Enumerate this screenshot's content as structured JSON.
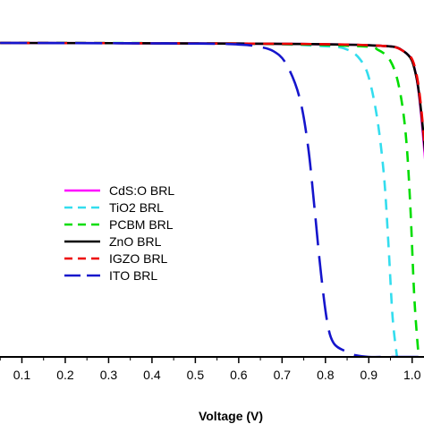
{
  "chart_data": {
    "type": "line",
    "title": "",
    "xlabel": "Voltage (V)",
    "ylabel": "",
    "xlim": [
      0.05,
      1.05
    ],
    "ylim": [
      0,
      1
    ],
    "x_ticks": [
      0.1,
      0.2,
      0.3,
      0.4,
      0.5,
      0.6,
      0.7,
      0.8,
      0.9,
      1.0
    ],
    "x_tick_labels": [
      "0.1",
      "0.2",
      "0.3",
      "0.4",
      "0.5",
      "0.6",
      "0.7",
      "0.8",
      "0.9",
      "1.0"
    ],
    "grid": false,
    "legend_position": "middle-left",
    "series": [
      {
        "name": "CdS:O  BRL",
        "color": "#ff00ff",
        "dash": "solid",
        "x": [
          0.05,
          0.6,
          0.9,
          0.98,
          1.01,
          1.03,
          1.045,
          1.05
        ],
        "y": [
          0.955,
          0.953,
          0.948,
          0.93,
          0.85,
          0.6,
          0.35,
          0.25
        ]
      },
      {
        "name": "TiO2  BRL",
        "color": "#33ddee",
        "dash": "dashed",
        "x": [
          0.05,
          0.6,
          0.8,
          0.85,
          0.88,
          0.9,
          0.92,
          0.935,
          0.945,
          0.955,
          0.965
        ],
        "y": [
          0.955,
          0.953,
          0.945,
          0.935,
          0.905,
          0.85,
          0.72,
          0.55,
          0.35,
          0.12,
          0.0
        ]
      },
      {
        "name": "PCBM  BRL",
        "color": "#00dd00",
        "dash": "dashed",
        "x": [
          0.05,
          0.6,
          0.88,
          0.92,
          0.95,
          0.97,
          0.985,
          0.995,
          1.005,
          1.015
        ],
        "y": [
          0.955,
          0.953,
          0.945,
          0.935,
          0.9,
          0.82,
          0.68,
          0.48,
          0.18,
          0.0
        ]
      },
      {
        "name": "ZnO  BRL",
        "color": "#000000",
        "dash": "solid",
        "x": [
          0.05,
          0.6,
          0.9,
          0.98,
          1.01,
          1.03,
          1.045,
          1.05
        ],
        "y": [
          0.955,
          0.953,
          0.948,
          0.93,
          0.85,
          0.62,
          0.37,
          0.27
        ]
      },
      {
        "name": "IGZO  BRL",
        "color": "#ee0000",
        "dash": "dashed",
        "x": [
          0.05,
          0.6,
          0.9,
          0.98,
          1.01,
          1.03,
          1.045,
          1.05
        ],
        "y": [
          0.955,
          0.953,
          0.948,
          0.93,
          0.86,
          0.63,
          0.38,
          0.28
        ]
      },
      {
        "name": "ITO  BRL",
        "color": "#1515cc",
        "dash": "longdash",
        "x": [
          0.05,
          0.5,
          0.6,
          0.64,
          0.68,
          0.71,
          0.74,
          0.76,
          0.775,
          0.79,
          0.805,
          0.82,
          0.85,
          0.87,
          0.9,
          0.95,
          1.05
        ],
        "y": [
          0.955,
          0.953,
          0.95,
          0.945,
          0.93,
          0.89,
          0.79,
          0.64,
          0.45,
          0.25,
          0.1,
          0.04,
          0.015,
          0.005,
          0.0,
          0.0,
          0.0
        ]
      }
    ]
  }
}
